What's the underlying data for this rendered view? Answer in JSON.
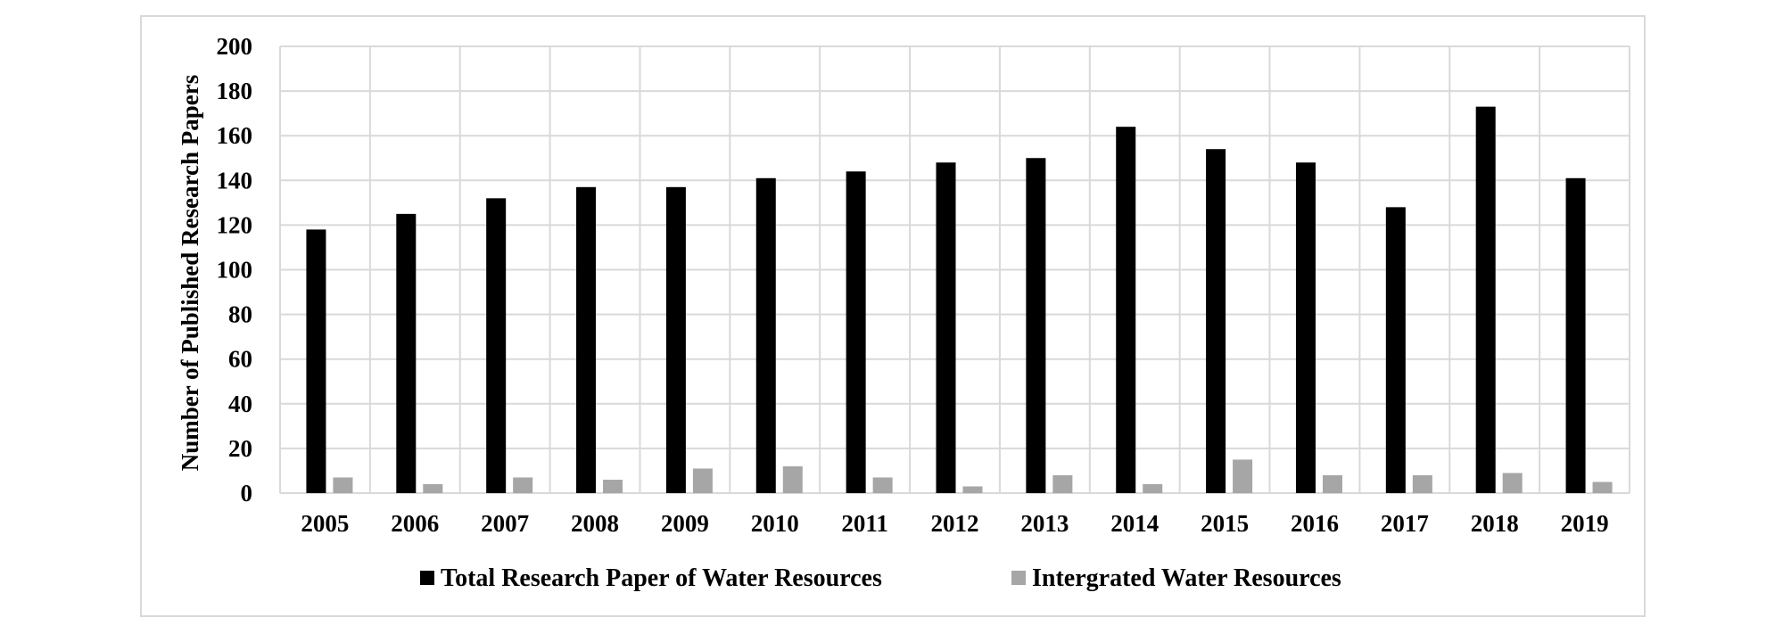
{
  "chart_data": {
    "type": "bar",
    "title": "",
    "xlabel": "",
    "ylabel": "Number of Published Research Papers",
    "ylim": [
      0,
      200
    ],
    "yticks": [
      0,
      20,
      40,
      60,
      80,
      100,
      120,
      140,
      160,
      180,
      200
    ],
    "grid": true,
    "legend_position": "bottom",
    "categories": [
      "2005",
      "2006",
      "2007",
      "2008",
      "2009",
      "2010",
      "2011",
      "2012",
      "2013",
      "2014",
      "2015",
      "2016",
      "2017",
      "2018",
      "2019"
    ],
    "series": [
      {
        "name": "Total Research Paper of Water Resources",
        "color": "#000000",
        "values": [
          118,
          125,
          132,
          137,
          137,
          141,
          144,
          148,
          150,
          164,
          154,
          148,
          128,
          173,
          141
        ]
      },
      {
        "name": "Intergrated Water Resources",
        "color": "#a6a6a6",
        "values": [
          7,
          4,
          7,
          6,
          11,
          12,
          7,
          3,
          8,
          4,
          15,
          8,
          8,
          9,
          5
        ]
      }
    ]
  }
}
